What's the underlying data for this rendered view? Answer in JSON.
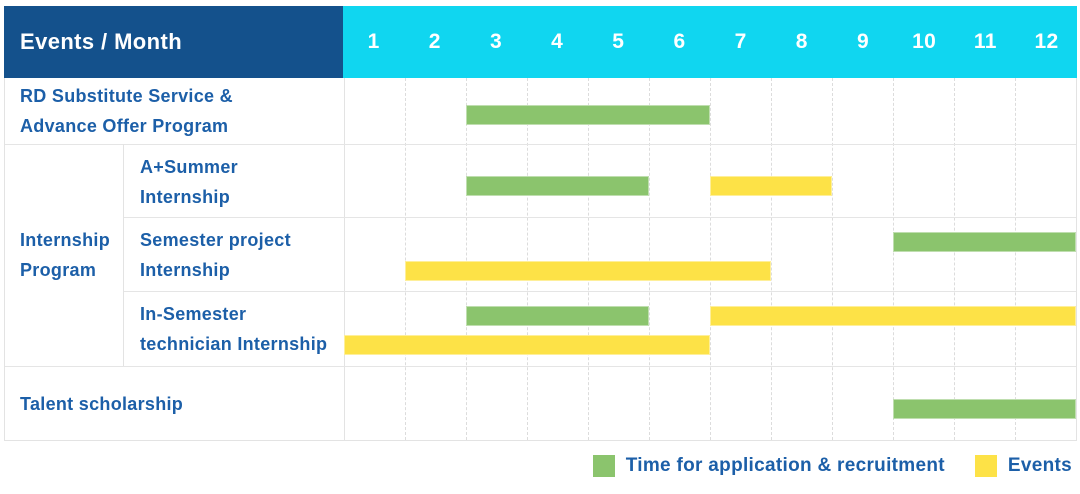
{
  "colors": {
    "header_bg": "#14518C",
    "months_bg": "#10D6F0",
    "recruitment": "#8BC46D",
    "events": "#FDE247",
    "label_text": "#1C5FA8",
    "header_text": "#FFFFFF",
    "grid_line": "#E3E3E3"
  },
  "header": {
    "title": "Events / Month",
    "months": [
      "1",
      "2",
      "3",
      "4",
      "5",
      "6",
      "7",
      "8",
      "9",
      "10",
      "11",
      "12"
    ]
  },
  "legend": [
    {
      "series": "recruitment",
      "label": "Time for application & recruitment"
    },
    {
      "series": "events",
      "label": "Events"
    }
  ],
  "chart_data": {
    "type": "gantt",
    "x_axis": {
      "label": "Month",
      "ticks": [
        1,
        2,
        3,
        4,
        5,
        6,
        7,
        8,
        9,
        10,
        11,
        12
      ],
      "range": [
        1,
        12
      ]
    },
    "series_legend": {
      "recruitment": "Time for application & recruitment",
      "events": "Events"
    },
    "group_label_lines": [
      "Internship",
      "Program"
    ],
    "rows": [
      {
        "id": "rd-substitute-service",
        "group": null,
        "label_lines": [
          "RD Substitute Service &",
          "Advance Offer Program"
        ],
        "tracks": 1,
        "bars": [
          {
            "series": "recruitment",
            "start_month": 3,
            "end_month": 6,
            "track": 0
          }
        ]
      },
      {
        "id": "a-plus-summer-internship",
        "group": "Internship Program",
        "label_lines": [
          "A+Summer",
          "Internship"
        ],
        "tracks": 1,
        "bars": [
          {
            "series": "recruitment",
            "start_month": 3,
            "end_month": 5,
            "track": 0
          },
          {
            "series": "events",
            "start_month": 7,
            "end_month": 8,
            "track": 0
          }
        ]
      },
      {
        "id": "semester-project-internship",
        "group": "Internship Program",
        "label_lines": [
          "Semester project",
          "Internship"
        ],
        "tracks": 2,
        "bars": [
          {
            "series": "recruitment",
            "start_month": 10,
            "end_month": 12,
            "track": 0
          },
          {
            "series": "events",
            "start_month": 2,
            "end_month": 7,
            "track": 1
          }
        ]
      },
      {
        "id": "in-semester-technician-internship",
        "group": "Internship Program",
        "label_lines": [
          "In-Semester",
          "technician Internship"
        ],
        "tracks": 2,
        "bars": [
          {
            "series": "recruitment",
            "start_month": 3,
            "end_month": 5,
            "track": 0
          },
          {
            "series": "events",
            "start_month": 7,
            "end_month": 12,
            "track": 0
          },
          {
            "series": "events",
            "start_month": 1,
            "end_month": 6,
            "track": 1
          }
        ]
      },
      {
        "id": "talent-scholarship",
        "group": null,
        "label_lines": [
          "Talent scholarship"
        ],
        "tracks": 1,
        "bars": [
          {
            "series": "recruitment",
            "start_month": 10,
            "end_month": 12,
            "track": 0
          }
        ]
      }
    ]
  }
}
